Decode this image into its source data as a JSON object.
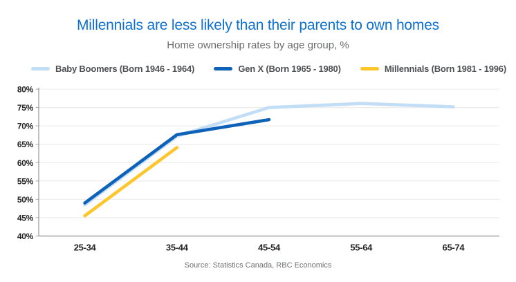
{
  "header": {
    "title": "Millennials are less likely than their parents to own homes",
    "subtitle": "Home ownership rates by age group, %"
  },
  "footer": {
    "source": "Source: Statistics Canada, RBC Economics"
  },
  "colors": {
    "title_blue": "#0d70d0",
    "baby_boomers": "#c2ddf6",
    "gen_x": "#0e63b8",
    "millennials": "#fdc62d",
    "axis": "#a3a5a8",
    "grid": "#ededee",
    "tick_text": "#242426",
    "muted_text": "#6a6b6d"
  },
  "chart_data": {
    "type": "line",
    "title": "Millennials are less likely than their parents to own homes",
    "subtitle": "Home ownership rates by age group, %",
    "categories": [
      "25-34",
      "35-44",
      "45-54",
      "55-64",
      "65-74"
    ],
    "series": [
      {
        "name": "Baby Boomers (Born 1946 - 1964)",
        "color": "#c2ddf6",
        "values": [
          48.5,
          67.2,
          75.0,
          76.1,
          75.2
        ]
      },
      {
        "name": "Gen X (Born 1965 - 1980)",
        "color": "#0e63b8",
        "values": [
          49.0,
          67.6,
          71.7,
          null,
          null
        ]
      },
      {
        "name": "Millennials (Born 1981 - 1996)",
        "color": "#fdc62d",
        "values": [
          45.5,
          64.1,
          null,
          null,
          null
        ]
      }
    ],
    "xlabel": "",
    "ylabel": "",
    "ylim": [
      40,
      80
    ],
    "ytick_step": 5,
    "ytick_format": "percent",
    "grid": "horizontal",
    "legend_position": "top",
    "source": "Source: Statistics Canada, RBC Economics"
  }
}
